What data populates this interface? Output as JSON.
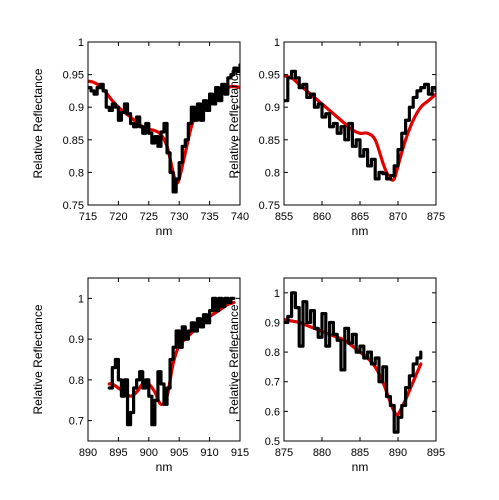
{
  "figure": {
    "background": "#ffffff"
  },
  "chart_data": [
    {
      "type": "line",
      "title": "",
      "xlabel": "nm",
      "ylabel": "Relative Reflectance",
      "xlim": [
        715,
        740
      ],
      "ylim": [
        0.75,
        1
      ],
      "xticks": [
        715,
        720,
        725,
        730,
        735,
        740
      ],
      "xtick_labels": [
        "715",
        "720",
        "725",
        "730",
        "735",
        "740"
      ],
      "yticks": [
        0.75,
        0.8,
        0.85,
        0.9,
        0.95,
        1
      ],
      "ytick_labels": [
        "0.75",
        "0.8",
        "0.85",
        "0.9",
        "0.95",
        "1"
      ],
      "grid": false,
      "series": [
        {
          "color": "#e00000",
          "style": "smooth",
          "x": [
            715,
            716,
            717,
            718,
            719,
            720,
            721,
            722,
            723,
            724,
            725,
            726,
            727,
            728,
            729,
            729.5,
            730,
            731,
            732,
            733,
            734,
            735,
            736,
            737,
            738,
            739,
            740
          ],
          "y": [
            0.94,
            0.938,
            0.932,
            0.922,
            0.91,
            0.9,
            0.892,
            0.885,
            0.877,
            0.87,
            0.866,
            0.864,
            0.858,
            0.84,
            0.8,
            0.785,
            0.79,
            0.83,
            0.87,
            0.892,
            0.9,
            0.905,
            0.91,
            0.92,
            0.93,
            0.932,
            0.93
          ]
        },
        {
          "color": "#000000",
          "style": "step",
          "x": [
            715,
            715.5,
            716,
            716.5,
            717,
            717.5,
            718,
            718.5,
            719,
            719.5,
            720,
            720.5,
            721,
            721.5,
            722,
            722.5,
            723,
            723.5,
            724,
            724.5,
            725,
            725.5,
            726,
            726.5,
            727,
            727.5,
            728,
            728.5,
            729,
            729.5,
            730,
            730.5,
            731,
            731.5,
            732,
            732.5,
            733,
            733.5,
            734,
            734.5,
            735,
            735.5,
            736,
            736.5,
            737,
            737.5,
            738,
            738.5,
            739,
            739.5,
            740
          ],
          "y": [
            0.93,
            0.925,
            0.92,
            0.93,
            0.935,
            0.925,
            0.9,
            0.895,
            0.905,
            0.9,
            0.88,
            0.892,
            0.905,
            0.89,
            0.875,
            0.87,
            0.885,
            0.87,
            0.86,
            0.875,
            0.86,
            0.845,
            0.855,
            0.84,
            0.862,
            0.875,
            0.83,
            0.8,
            0.77,
            0.79,
            0.815,
            0.84,
            0.85,
            0.875,
            0.9,
            0.88,
            0.905,
            0.88,
            0.91,
            0.895,
            0.92,
            0.905,
            0.93,
            0.91,
            0.935,
            0.92,
            0.945,
            0.95,
            0.96,
            0.955,
            0.965
          ]
        }
      ]
    },
    {
      "type": "line",
      "title": "",
      "xlabel": "nm",
      "ylabel": "Relative Reflectance",
      "xlim": [
        855,
        875
      ],
      "ylim": [
        0.75,
        1
      ],
      "xticks": [
        855,
        860,
        865,
        870,
        875
      ],
      "xtick_labels": [
        "855",
        "860",
        "865",
        "870",
        "875"
      ],
      "yticks": [
        0.75,
        0.8,
        0.85,
        0.9,
        0.95,
        1
      ],
      "ytick_labels": [
        "0.75",
        "0.8",
        "0.85",
        "0.9",
        "0.95",
        "1"
      ],
      "grid": false,
      "series": [
        {
          "color": "#e00000",
          "style": "smooth",
          "x": [
            855,
            856,
            857,
            858,
            859,
            860,
            861,
            862,
            863,
            864,
            865,
            866,
            867,
            868,
            868.5,
            869,
            869.5,
            870,
            871,
            872,
            873,
            874,
            875
          ],
          "y": [
            0.948,
            0.945,
            0.935,
            0.925,
            0.915,
            0.905,
            0.895,
            0.885,
            0.875,
            0.865,
            0.86,
            0.86,
            0.85,
            0.815,
            0.8,
            0.79,
            0.79,
            0.81,
            0.85,
            0.88,
            0.9,
            0.91,
            0.92
          ]
        },
        {
          "color": "#000000",
          "style": "step",
          "x": [
            855,
            855.5,
            856,
            856.5,
            857,
            857.5,
            858,
            858.5,
            859,
            859.5,
            860,
            860.5,
            861,
            861.5,
            862,
            862.5,
            863,
            863.5,
            864,
            864.5,
            865,
            865.5,
            866,
            866.5,
            867,
            867.5,
            868,
            868.5,
            869,
            869.5,
            870,
            870.5,
            871,
            871.5,
            872,
            872.5,
            873,
            873.5,
            874,
            874.5,
            875
          ],
          "y": [
            0.91,
            0.945,
            0.955,
            0.945,
            0.93,
            0.935,
            0.915,
            0.92,
            0.9,
            0.905,
            0.885,
            0.89,
            0.87,
            0.875,
            0.86,
            0.87,
            0.85,
            0.875,
            0.84,
            0.85,
            0.825,
            0.835,
            0.81,
            0.82,
            0.79,
            0.8,
            0.798,
            0.79,
            0.795,
            0.81,
            0.835,
            0.86,
            0.88,
            0.9,
            0.915,
            0.925,
            0.93,
            0.935,
            0.92,
            0.93,
            0.925
          ]
        }
      ]
    },
    {
      "type": "line",
      "title": "",
      "xlabel": "nm",
      "ylabel": "Relative Reflectance",
      "xlim": [
        890,
        915
      ],
      "ylim": [
        0.65,
        1.05
      ],
      "xticks": [
        890,
        895,
        900,
        905,
        910,
        915
      ],
      "xtick_labels": [
        "890",
        "895",
        "900",
        "905",
        "910",
        "915"
      ],
      "yticks": [
        0.7,
        0.8,
        0.9,
        1
      ],
      "ytick_labels": [
        "0.7",
        "0.8",
        "0.9",
        "1"
      ],
      "grid": false,
      "series": [
        {
          "color": "#e00000",
          "style": "smooth",
          "x": [
            893.5,
            894,
            895,
            896,
            897,
            898,
            899,
            900,
            901,
            902,
            903,
            904,
            905,
            906,
            907,
            908,
            909,
            910,
            911,
            912,
            913,
            914
          ],
          "y": [
            0.79,
            0.79,
            0.78,
            0.77,
            0.76,
            0.77,
            0.79,
            0.79,
            0.77,
            0.74,
            0.76,
            0.84,
            0.885,
            0.9,
            0.915,
            0.93,
            0.94,
            0.955,
            0.965,
            0.975,
            0.985,
            0.99
          ]
        },
        {
          "color": "#000000",
          "style": "step",
          "x": [
            893.5,
            894,
            894.5,
            895,
            895.5,
            896,
            896.5,
            897,
            897.5,
            898,
            898.5,
            899,
            899.5,
            900,
            900.5,
            901,
            901.5,
            902,
            902.5,
            903,
            903.5,
            904,
            904.5,
            905,
            905.5,
            906,
            906.5,
            907,
            907.5,
            908,
            908.5,
            909,
            909.5,
            910,
            910.5,
            911,
            911.5,
            912,
            912.5,
            913,
            913.5,
            914
          ],
          "y": [
            0.78,
            0.83,
            0.85,
            0.8,
            0.76,
            0.8,
            0.69,
            0.72,
            0.78,
            0.8,
            0.82,
            0.78,
            0.8,
            0.76,
            0.69,
            0.75,
            0.82,
            0.79,
            0.74,
            0.78,
            0.85,
            0.88,
            0.92,
            0.88,
            0.93,
            0.9,
            0.92,
            0.94,
            0.92,
            0.95,
            0.93,
            0.96,
            0.94,
            0.97,
            1.0,
            0.97,
            1.0,
            0.98,
            1.0,
            0.99,
            1.0,
            1.0
          ]
        }
      ]
    },
    {
      "type": "line",
      "title": "",
      "xlabel": "nm",
      "ylabel": "Relative Reflectance",
      "xlim": [
        875,
        895
      ],
      "ylim": [
        0.5,
        1.05
      ],
      "xticks": [
        875,
        880,
        885,
        890,
        895
      ],
      "xtick_labels": [
        "875",
        "880",
        "885",
        "890",
        "895"
      ],
      "yticks": [
        0.5,
        0.6,
        0.7,
        0.8,
        0.9,
        1
      ],
      "ytick_labels": [
        "0.5",
        "0.6",
        "0.7",
        "0.8",
        "0.9",
        "1"
      ],
      "grid": false,
      "series": [
        {
          "color": "#e00000",
          "style": "smooth",
          "x": [
            875,
            876,
            877,
            878,
            879,
            880,
            881,
            882,
            883,
            884,
            885,
            886,
            887,
            888,
            889,
            889.5,
            890,
            891,
            892,
            893
          ],
          "y": [
            0.91,
            0.905,
            0.9,
            0.89,
            0.88,
            0.87,
            0.86,
            0.85,
            0.84,
            0.82,
            0.8,
            0.78,
            0.75,
            0.7,
            0.63,
            0.6,
            0.59,
            0.64,
            0.7,
            0.76
          ]
        },
        {
          "color": "#000000",
          "style": "step",
          "x": [
            875,
            875.5,
            876,
            876.5,
            877,
            877.5,
            878,
            878.5,
            879,
            879.5,
            880,
            880.5,
            881,
            881.5,
            882,
            882.5,
            883,
            883.5,
            884,
            884.5,
            885,
            885.5,
            886,
            886.5,
            887,
            887.5,
            888,
            888.5,
            889,
            889.5,
            890,
            890.5,
            891,
            891.5,
            892,
            892.5,
            893
          ],
          "y": [
            0.9,
            0.92,
            1.0,
            0.95,
            0.82,
            0.97,
            0.9,
            0.94,
            0.88,
            0.85,
            0.93,
            0.82,
            0.9,
            0.86,
            0.84,
            0.74,
            0.88,
            0.83,
            0.86,
            0.8,
            0.82,
            0.78,
            0.8,
            0.76,
            0.78,
            0.7,
            0.75,
            0.65,
            0.62,
            0.53,
            0.58,
            0.62,
            0.68,
            0.72,
            0.76,
            0.78,
            0.8
          ]
        }
      ]
    }
  ]
}
